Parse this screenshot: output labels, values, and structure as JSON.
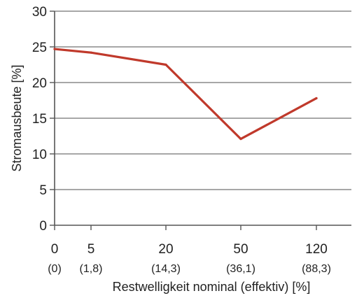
{
  "chart_data": {
    "type": "line",
    "title": "",
    "xlabel": "Restwelligkeit nominal (effektiv) [%]",
    "ylabel": "Stromausbeute [%]",
    "ylim": [
      0,
      30
    ],
    "yticks": [
      0,
      5,
      10,
      15,
      20,
      25,
      30
    ],
    "grid": "horizontal",
    "legend": "none",
    "series_color": "#c0392b",
    "categories": [
      "0",
      "5",
      "20",
      "50",
      "120"
    ],
    "categories_effective": [
      "(0)",
      "(1,8)",
      "(14,3)",
      "(36,1)",
      "(88,3)"
    ],
    "series": [
      {
        "values": [
          24.7,
          24.2,
          22.5,
          12.1,
          17.8
        ]
      }
    ]
  }
}
